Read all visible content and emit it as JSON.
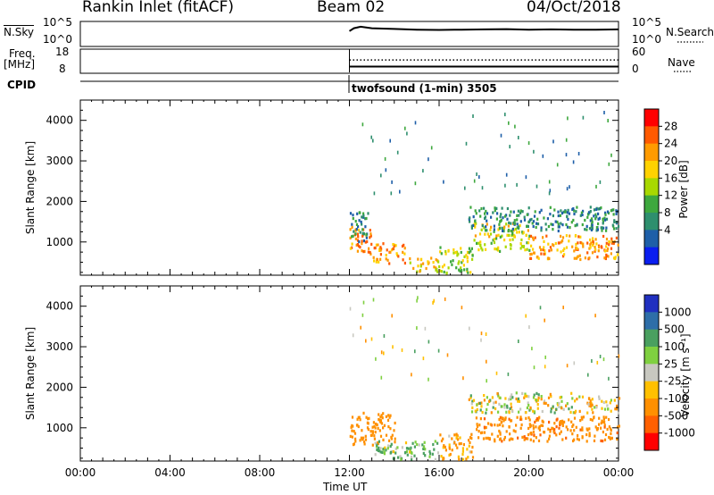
{
  "header": {
    "station": "Rankin Inlet (fitACF)",
    "beam": "Beam 02",
    "date": "04/Oct/2018"
  },
  "strip": {
    "nsky_label": "N.Sky",
    "nsky_ticks": [
      "10^5",
      "10^0"
    ],
    "nsearch_ticks": [
      "10^5",
      "10^0"
    ],
    "nsearch_label": "N.Search",
    "freq_label": "Freq.",
    "freq_unit": "[MHz]",
    "freq_ticks": [
      "18",
      "8"
    ],
    "nave_ticks": [
      "60",
      "0"
    ],
    "nave_label": "Nave",
    "cpid_label": "CPID",
    "cpid_text": "twofsound (1-min) 3505"
  },
  "panels": {
    "power": {
      "ylabel": "Slant Range [km]",
      "yticks": [
        "4000",
        "3000",
        "2000",
        "1000"
      ],
      "cb_label": "Power [dB]",
      "cb_ticks": [
        "28",
        "24",
        "20",
        "16",
        "12",
        "8",
        "4"
      ],
      "cb_colors": [
        "#ff0000",
        "#ff5a00",
        "#ff9b00",
        "#ffd200",
        "#a8d800",
        "#3ea83e",
        "#2e8f6e",
        "#1e5fa8",
        "#0a1ef0"
      ]
    },
    "velocity": {
      "ylabel": "Slant Range [km]",
      "yticks": [
        "4000",
        "3000",
        "2000",
        "1000"
      ],
      "cb_label": "Velocity  [m s⁻¹]",
      "cb_ticks": [
        "1000",
        "500",
        "100",
        "25",
        "-25",
        "-100",
        "-500",
        "-1000"
      ],
      "cb_colors": [
        "#2030c0",
        "#2e6ea8",
        "#4aa060",
        "#7fd040",
        "#c8c8c0",
        "#ffc000",
        "#ff9000",
        "#ff6000",
        "#ff0000"
      ]
    }
  },
  "xaxis": {
    "ticks": [
      "00:00",
      "04:00",
      "08:00",
      "12:00",
      "16:00",
      "20:00",
      "00:00"
    ],
    "label": "Time UT"
  },
  "chart_data": [
    {
      "type": "line",
      "title": "",
      "xlabel": "",
      "ylabel": "N.Sky",
      "x_range_hours": [
        0,
        24
      ],
      "yscale": "log",
      "ylim": [
        "10^0",
        "10^5"
      ],
      "series": [
        {
          "name": "N.Sky",
          "style": "solid",
          "x": [
            12.0,
            12.2,
            12.5,
            13.0,
            14,
            15,
            16,
            17,
            18,
            19,
            20,
            21,
            22,
            23,
            24
          ],
          "y": [
            3.0,
            3.6,
            3.9,
            3.6,
            3.45,
            3.3,
            3.25,
            3.3,
            3.35,
            3.4,
            3.3,
            3.35,
            3.3,
            3.3,
            3.35
          ]
        },
        {
          "name": "N.Search",
          "style": "dotted",
          "x": [],
          "y": []
        }
      ]
    },
    {
      "type": "line",
      "title": "",
      "xlabel": "",
      "ylabel": "Freq. [MHz]",
      "x_range_hours": [
        0,
        24
      ],
      "ylim": [
        8,
        18
      ],
      "y2lim": [
        0,
        60
      ],
      "series": [
        {
          "name": "Freq.",
          "style": "solid",
          "x": [
            12.0,
            24.0
          ],
          "y": [
            10.5,
            10.5
          ]
        },
        {
          "name": "Nave",
          "style": "dotted",
          "x": [
            12.0,
            24.0
          ],
          "y": [
            32,
            32
          ]
        }
      ]
    },
    {
      "type": "heatmap",
      "title": "",
      "xlabel": "Time UT",
      "ylabel": "Slant Range [km]",
      "x_range_hours": [
        0,
        24
      ],
      "ylim": [
        180,
        4500
      ],
      "colorbar": "Power [dB]",
      "colorbar_ticks": [
        4,
        8,
        12,
        16,
        20,
        24,
        28
      ],
      "regions": [
        {
          "t": [
            12.0,
            13.0
          ],
          "range": [
            700,
            1400
          ],
          "value": 28
        },
        {
          "t": [
            13.0,
            14.5
          ],
          "range": [
            500,
            1000
          ],
          "value": 26
        },
        {
          "t": [
            14.5,
            16.0
          ],
          "range": [
            300,
            650
          ],
          "value": 22
        },
        {
          "t": [
            16.0,
            17.5
          ],
          "range": [
            250,
            900
          ],
          "value": 18
        },
        {
          "t": [
            17.5,
            20.0
          ],
          "range": [
            800,
            1500
          ],
          "value": 20
        },
        {
          "t": [
            20.0,
            24.0
          ],
          "range": [
            600,
            1200
          ],
          "value": 26
        },
        {
          "t": [
            17.3,
            24.0
          ],
          "range": [
            1300,
            1900
          ],
          "value": 10
        },
        {
          "t": [
            12.0,
            12.8
          ],
          "range": [
            1000,
            1800
          ],
          "value": 10
        }
      ]
    },
    {
      "type": "heatmap",
      "title": "",
      "xlabel": "Time UT",
      "ylabel": "Slant Range [km]",
      "x_range_hours": [
        0,
        24
      ],
      "ylim": [
        180,
        4500
      ],
      "colorbar": "Velocity [m s⁻¹]",
      "colorbar_ticks": [
        -1000,
        -500,
        -100,
        -25,
        25,
        100,
        500,
        1000
      ],
      "regions": [
        {
          "t": [
            12.0,
            14.0
          ],
          "range": [
            600,
            1400
          ],
          "value": -300
        },
        {
          "t": [
            13.0,
            16.0
          ],
          "range": [
            250,
            700
          ],
          "value": 120
        },
        {
          "t": [
            16.0,
            17.5
          ],
          "range": [
            250,
            900
          ],
          "value": -150
        },
        {
          "t": [
            17.3,
            22.0
          ],
          "range": [
            1400,
            1900
          ],
          "value": 0
        },
        {
          "t": [
            17.5,
            24.0
          ],
          "range": [
            700,
            1300
          ],
          "value": -400
        },
        {
          "t": [
            22.0,
            24.0
          ],
          "range": [
            1400,
            1800
          ],
          "value": -80
        }
      ]
    }
  ]
}
